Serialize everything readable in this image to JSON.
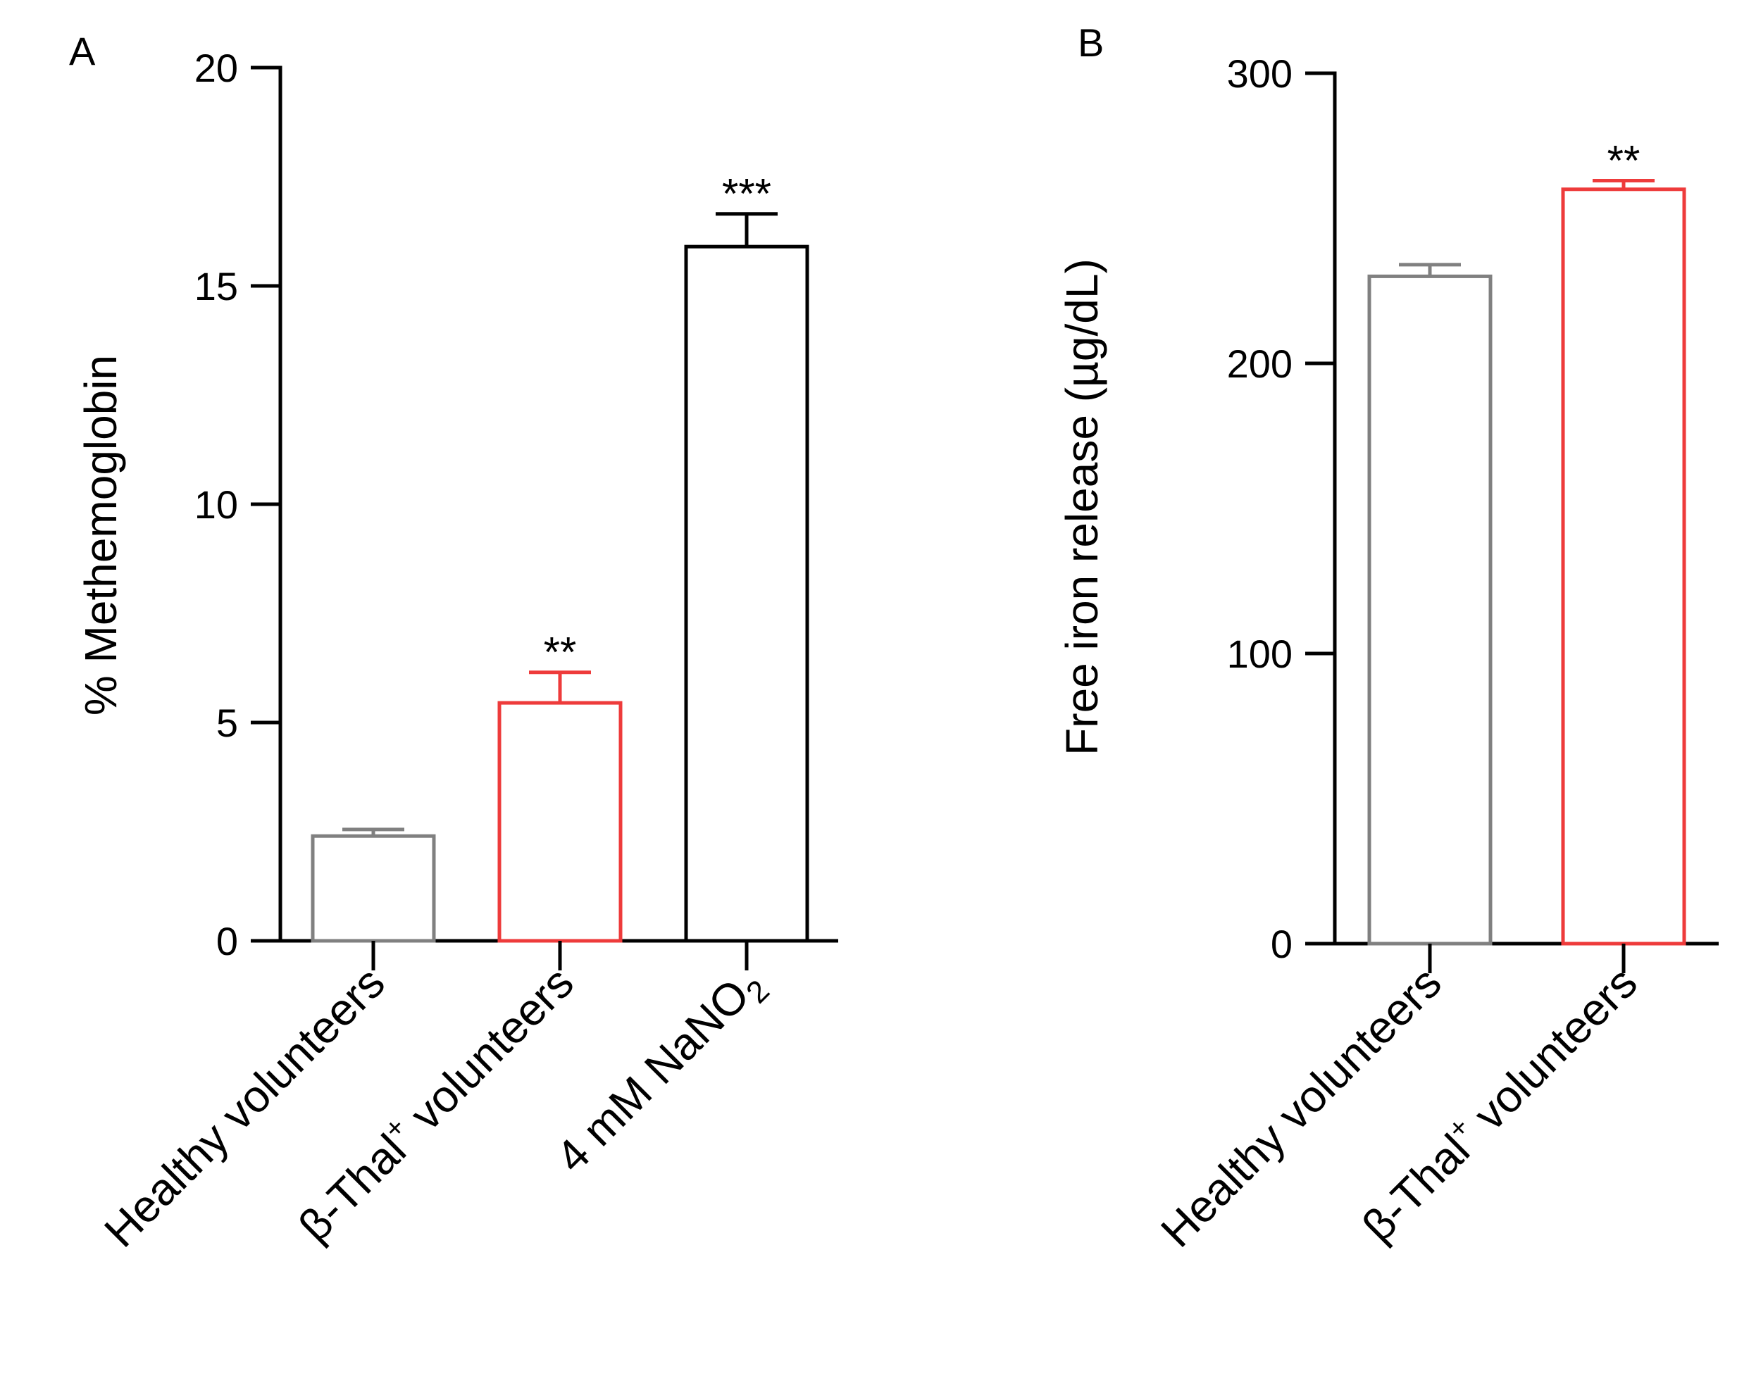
{
  "colors": {
    "axis": "#000000",
    "healthy": "#808080",
    "thal": "#ee3b3b",
    "nano2": "#000000"
  },
  "chart_data": [
    {
      "panel": "A",
      "type": "bar",
      "title": "",
      "xlabel": "",
      "ylabel": "% Methemoglobin",
      "ylim": [
        0,
        20
      ],
      "yticks": [
        "0",
        "5",
        "10",
        "15",
        "20"
      ],
      "grid": false,
      "categories": [
        "Healthy volunteers",
        "β-Thal+ volunteers",
        "4 mM NaNO2"
      ],
      "category_labels": [
        {
          "main": "Healthy volunteers"
        },
        {
          "pre": "β-Thal",
          "sup": "+",
          "post": " volunteers"
        },
        {
          "pre": "4 mM NaNO",
          "sub": "2",
          "post": ""
        }
      ],
      "values": [
        2.4,
        5.45,
        15.9
      ],
      "errors": [
        0.15,
        0.7,
        0.75
      ],
      "significance": [
        "",
        "**",
        "***"
      ],
      "bar_colors": [
        "#808080",
        "#ee3b3b",
        "#000000"
      ]
    },
    {
      "panel": "B",
      "type": "bar",
      "title": "",
      "xlabel": "",
      "ylabel": "Free iron release (µg/dL)",
      "ylim": [
        0,
        300
      ],
      "yticks": [
        "0",
        "100",
        "200",
        "300"
      ],
      "grid": false,
      "categories": [
        "Healthy volunteers",
        "β-Thal+ volunteers"
      ],
      "category_labels": [
        {
          "main": "Healthy volunteers"
        },
        {
          "pre": "β-Thal",
          "sup": "+",
          "post": " volunteers"
        }
      ],
      "values": [
        230,
        260
      ],
      "errors": [
        4,
        3
      ],
      "significance": [
        "",
        "**"
      ],
      "bar_colors": [
        "#808080",
        "#ee3b3b"
      ]
    }
  ]
}
